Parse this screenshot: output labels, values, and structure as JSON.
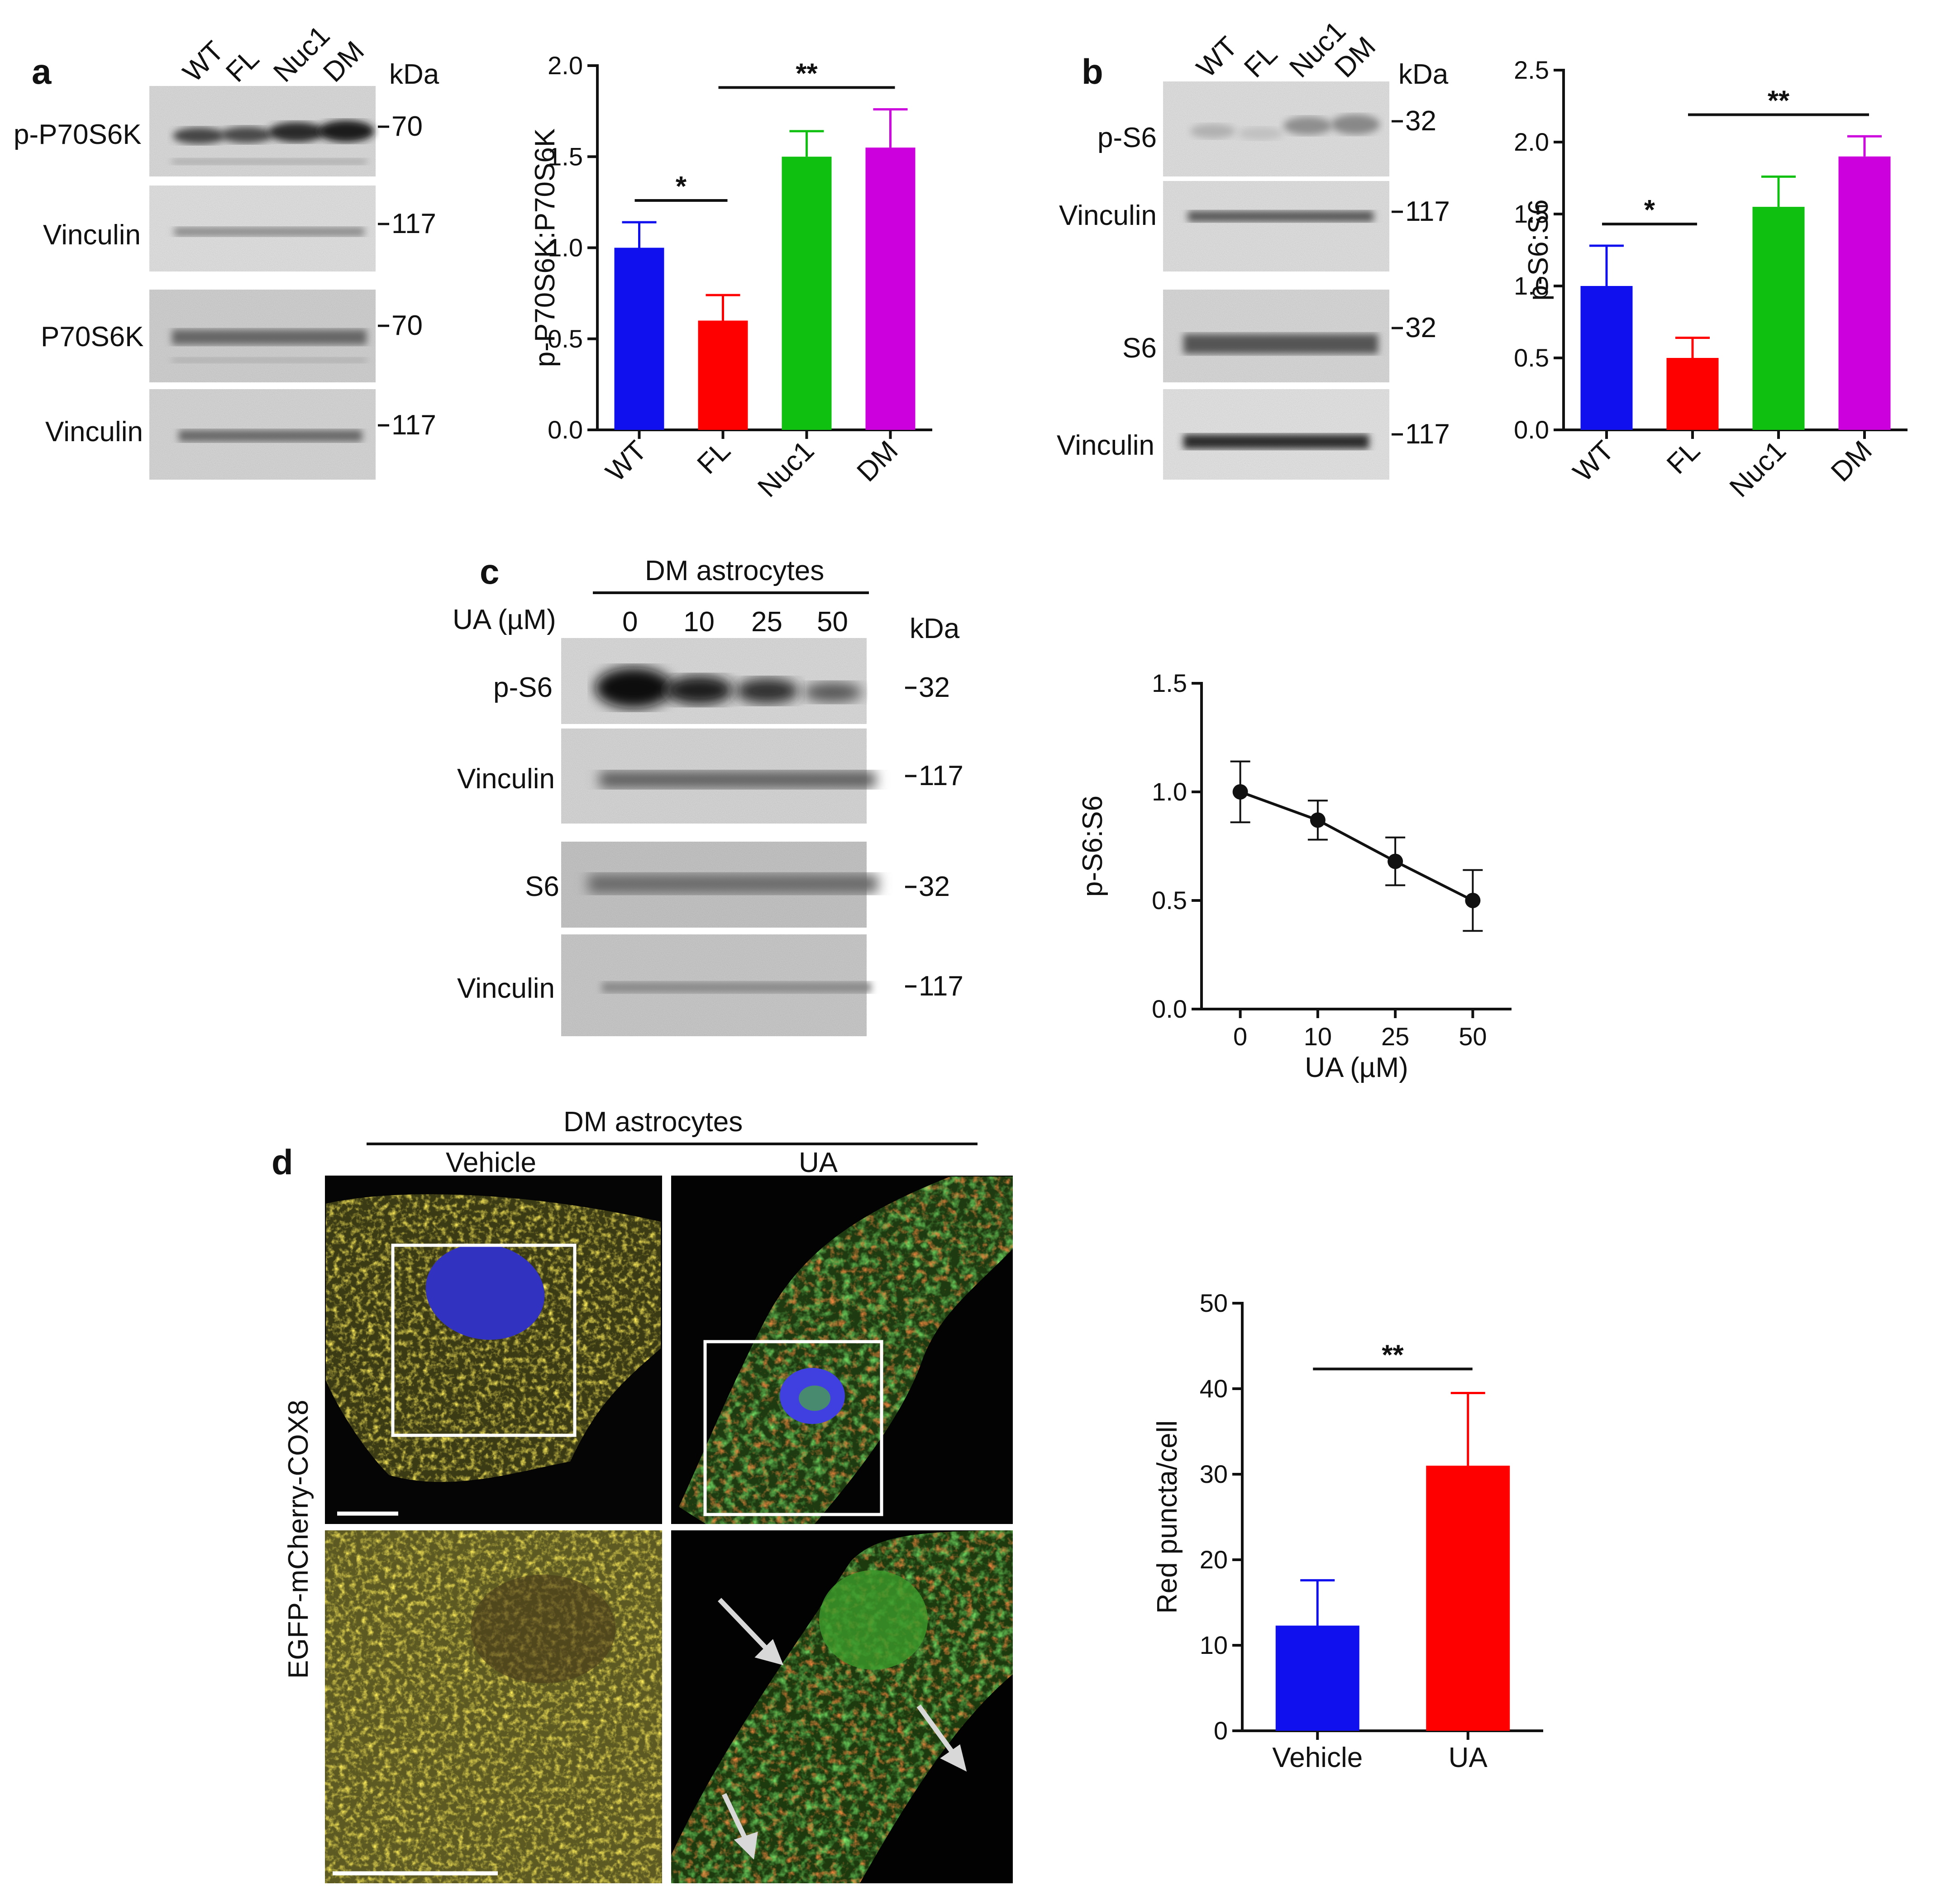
{
  "panel_a": {
    "letter": "a",
    "blot": {
      "lanes": [
        "WT",
        "FL",
        "Nuc1",
        "DM"
      ],
      "unit": "kDa",
      "strips": [
        {
          "label": "p-P70S6K",
          "marker": "70"
        },
        {
          "label": "Vinculin",
          "marker": "117"
        },
        {
          "label": "P70S6K",
          "marker": "70"
        },
        {
          "label": "Vinculin",
          "marker": "117"
        }
      ]
    }
  },
  "panel_b": {
    "letter": "b",
    "blot": {
      "lanes": [
        "WT",
        "FL",
        "Nuc1",
        "DM"
      ],
      "unit": "kDa",
      "strips": [
        {
          "label": "p-S6",
          "marker": "32"
        },
        {
          "label": "Vinculin",
          "marker": "117"
        },
        {
          "label": "S6",
          "marker": "32"
        },
        {
          "label": "Vinculin",
          "marker": "117"
        }
      ]
    }
  },
  "panel_c": {
    "letter": "c",
    "blot": {
      "group_label": "DM astrocytes",
      "dose_label": "UA (µM)",
      "lanes": [
        "0",
        "10",
        "25",
        "50"
      ],
      "unit": "kDa",
      "strips": [
        {
          "label": "p-S6",
          "marker": "32"
        },
        {
          "label": "Vinculin",
          "marker": "117"
        },
        {
          "label": "S6",
          "marker": "32"
        },
        {
          "label": "Vinculin",
          "marker": "117"
        }
      ]
    }
  },
  "panel_d": {
    "letter": "d",
    "group_label": "DM astrocytes",
    "conditions": [
      "Vehicle",
      "UA"
    ],
    "side_label": "EGFP-mCherry-COX8"
  },
  "colors": {
    "blue": "#1010ee",
    "red": "#ff0000",
    "green": "#10c010",
    "magenta": "#cc00dd",
    "black": "#111111"
  },
  "chart_data": [
    {
      "id": "chart-a",
      "type": "bar",
      "categories": [
        "WT",
        "FL",
        "Nuc1",
        "DM"
      ],
      "values": [
        1.0,
        0.6,
        1.5,
        1.55
      ],
      "errors": [
        0.14,
        0.14,
        0.14,
        0.21
      ],
      "colors": [
        "#1010ee",
        "#ff0000",
        "#10c010",
        "#cc00dd"
      ],
      "ylabel": "p-P70S6K:P70S6K",
      "ylim": [
        0,
        2.0
      ],
      "yticks": [
        "0.0",
        "0.5",
        "1.0",
        "1.5",
        "2.0"
      ],
      "significance": [
        {
          "from": 0,
          "to": 1,
          "label": "*"
        },
        {
          "from": 1,
          "to": 3,
          "label": "**"
        }
      ]
    },
    {
      "id": "chart-b",
      "type": "bar",
      "categories": [
        "WT",
        "FL",
        "Nuc1",
        "DM"
      ],
      "values": [
        1.0,
        0.5,
        1.55,
        1.9
      ],
      "errors": [
        0.28,
        0.14,
        0.21,
        0.14
      ],
      "colors": [
        "#1010ee",
        "#ff0000",
        "#10c010",
        "#cc00dd"
      ],
      "ylabel": "p-S6:S6",
      "ylim": [
        0,
        2.5
      ],
      "yticks": [
        "0.0",
        "0.5",
        "1.0",
        "1.5",
        "2.0",
        "2.5"
      ],
      "significance": [
        {
          "from": 0,
          "to": 1,
          "label": "*"
        },
        {
          "from": 1,
          "to": 3,
          "label": "**"
        }
      ]
    },
    {
      "id": "chart-c",
      "type": "line",
      "categories": [
        "0",
        "10",
        "25",
        "50"
      ],
      "values": [
        1.0,
        0.87,
        0.68,
        0.5
      ],
      "errors": [
        0.14,
        0.09,
        0.11,
        0.14
      ],
      "colors": [
        "#111111"
      ],
      "xlabel": "UA (µM)",
      "ylabel": "p-S6:S6",
      "ylim": [
        0,
        1.5
      ],
      "yticks": [
        "0.0",
        "0.5",
        "1.0",
        "1.5"
      ]
    },
    {
      "id": "chart-d",
      "type": "bar",
      "categories": [
        "Vehicle",
        "UA"
      ],
      "values": [
        12.3,
        31.0
      ],
      "errors": [
        5.3,
        8.5
      ],
      "colors": [
        "#1010ee",
        "#ff0000"
      ],
      "ylabel": "Red puncta/cell",
      "ylim": [
        0,
        50
      ],
      "yticks": [
        "0",
        "10",
        "20",
        "30",
        "40",
        "50"
      ],
      "significance": [
        {
          "from": 0,
          "to": 1,
          "label": "**"
        }
      ]
    }
  ]
}
